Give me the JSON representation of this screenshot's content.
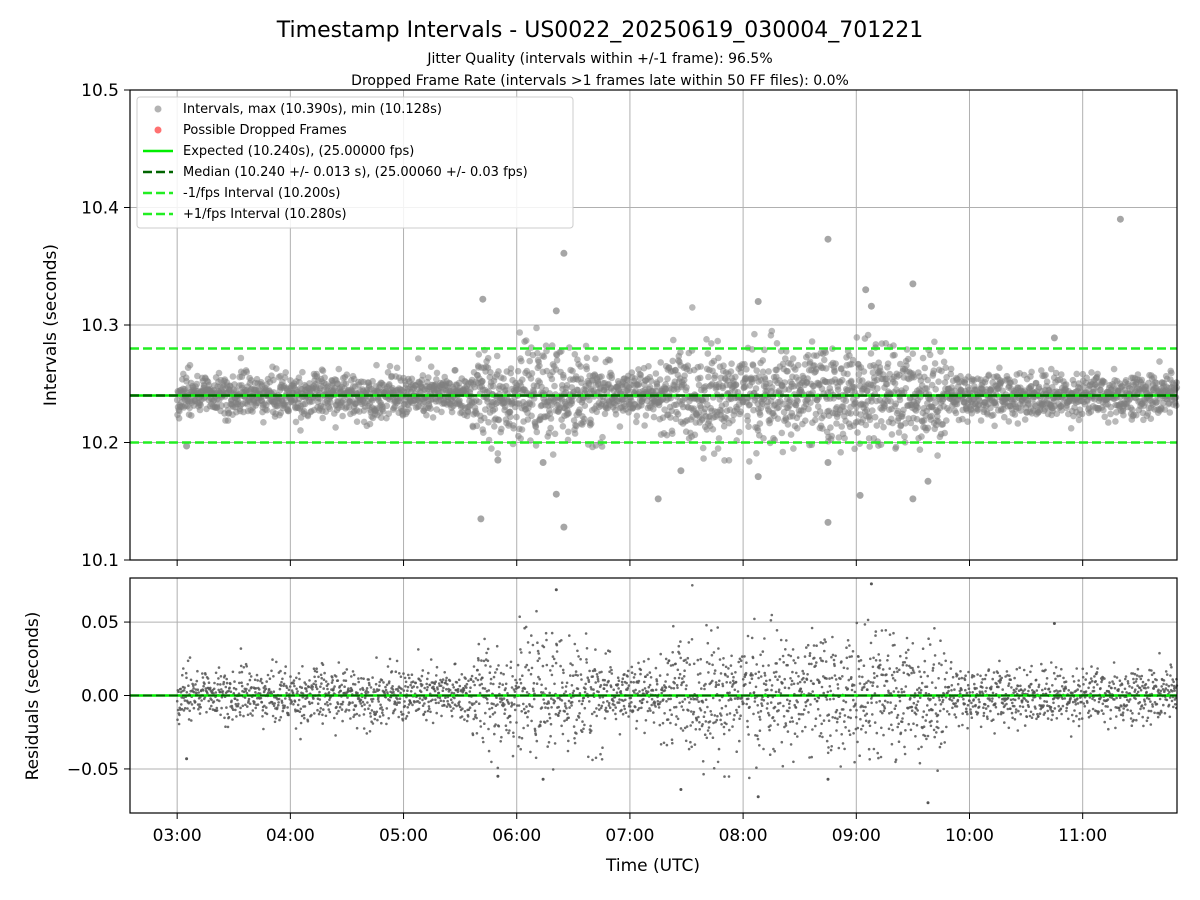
{
  "colors": {
    "points": "#808080",
    "dropped": "#ff4d4d",
    "expected": "#00ee00",
    "median": "#006400",
    "fps_band": "#22ee22",
    "grid": "#b0b0b0",
    "axes": "#000000"
  },
  "chart_data": {
    "type": "scatter",
    "title": "Timestamp Intervals - US0022_20250619_030004_701221",
    "subtitle1": "Jitter Quality (intervals within +/-1 frame): 96.5%",
    "subtitle2": "Dropped Frame Rate (intervals >1 frames late within 50 FF files): 0.0%",
    "xlabel": "Time (UTC)",
    "x_range": [
      "02:35",
      "11:50"
    ],
    "x_ticks": [
      "03:00",
      "04:00",
      "05:00",
      "06:00",
      "07:00",
      "08:00",
      "09:00",
      "10:00",
      "11:00"
    ],
    "grid": true,
    "legend_position": "top-left",
    "panels": [
      {
        "name": "intervals",
        "ylabel": "Intervals (seconds)",
        "ylim": [
          10.1,
          10.5
        ],
        "y_ticks": [
          "10.1",
          "10.2",
          "10.3",
          "10.4",
          "10.5"
        ],
        "series": [
          {
            "name": "Intervals, max (10.390s), min (10.128s)",
            "kind": "scatter",
            "max": 10.39,
            "min": 10.128
          },
          {
            "name": "Possible Dropped Frames",
            "kind": "scatter",
            "count": 0
          },
          {
            "name": "Expected (10.240s), (25.00000 fps)",
            "kind": "hline",
            "value": 10.24
          },
          {
            "name": "Median (10.240 +/- 0.013 s), (25.00060 +/- 0.03 fps)",
            "kind": "hline",
            "value": 10.24
          },
          {
            "name": "-1/fps Interval (10.200s)",
            "kind": "hline",
            "value": 10.2
          },
          {
            "name": "+1/fps Interval (10.280s)",
            "kind": "hline",
            "value": 10.28
          }
        ],
        "outliers": [
          {
            "x": "03:05",
            "y": 10.197
          },
          {
            "x": "05:42",
            "y": 10.322
          },
          {
            "x": "05:41",
            "y": 10.135
          },
          {
            "x": "05:50",
            "y": 10.185
          },
          {
            "x": "06:21",
            "y": 10.156
          },
          {
            "x": "06:25",
            "y": 10.361
          },
          {
            "x": "06:25",
            "y": 10.128
          },
          {
            "x": "06:21",
            "y": 10.312
          },
          {
            "x": "06:14",
            "y": 10.183
          },
          {
            "x": "07:15",
            "y": 10.152
          },
          {
            "x": "07:27",
            "y": 10.176
          },
          {
            "x": "08:08",
            "y": 10.32
          },
          {
            "x": "08:08",
            "y": 10.171
          },
          {
            "x": "08:45",
            "y": 10.373
          },
          {
            "x": "08:45",
            "y": 10.132
          },
          {
            "x": "08:45",
            "y": 10.183
          },
          {
            "x": "09:02",
            "y": 10.155
          },
          {
            "x": "09:05",
            "y": 10.33
          },
          {
            "x": "09:08",
            "y": 10.316
          },
          {
            "x": "09:30",
            "y": 10.335
          },
          {
            "x": "09:30",
            "y": 10.152
          },
          {
            "x": "09:38",
            "y": 10.167
          },
          {
            "x": "11:20",
            "y": 10.39
          },
          {
            "x": "10:45",
            "y": 10.289
          }
        ]
      },
      {
        "name": "residuals",
        "ylabel": "Residuals (seconds)",
        "ylim": [
          -0.08,
          0.08
        ],
        "y_ticks": [
          "−0.05",
          "0.00",
          "0.05"
        ],
        "reference": 0.0
      }
    ]
  }
}
